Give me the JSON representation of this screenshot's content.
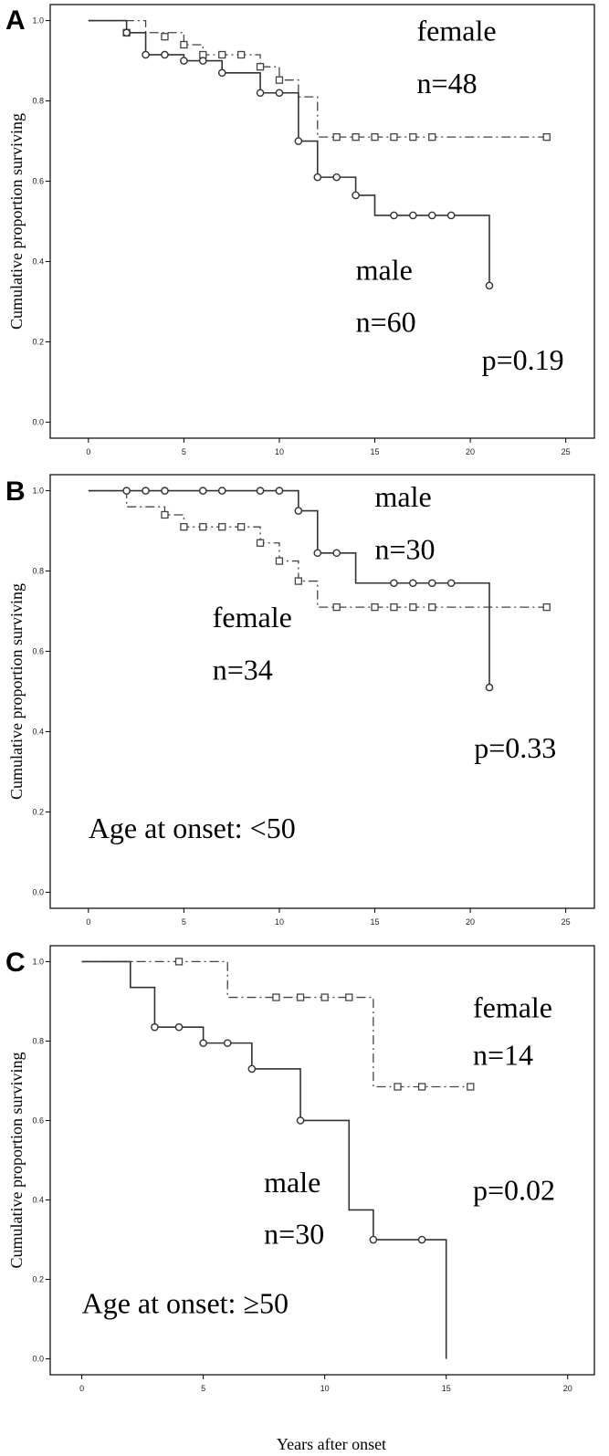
{
  "x_axis_title": "Years after onset",
  "chart_data": [
    {
      "type": "line",
      "panel_letter": "A",
      "title": "",
      "xlabel": "",
      "ylabel": "Cumulative proportion surviving",
      "xlim": [
        -2,
        26.5
      ],
      "ylim": [
        -0.04,
        1.04
      ],
      "x_ticks": [
        "0",
        "5",
        "10",
        "15",
        "20",
        "25"
      ],
      "y_ticks": [
        "0.0",
        "0.2",
        "0.4",
        "0.6",
        "0.8",
        "1.0"
      ],
      "series": [
        {
          "group": "female",
          "style": "dash-dot",
          "color": "#444444",
          "steps": [
            [
              0,
              1.0
            ],
            [
              3,
              0.97
            ],
            [
              5,
              0.94
            ],
            [
              6,
              0.915
            ],
            [
              9,
              0.885
            ],
            [
              10,
              0.852
            ],
            [
              11,
              0.81
            ],
            [
              12,
              0.71
            ],
            [
              24,
              0.71
            ]
          ],
          "censored": [
            [
              2,
              0.97
            ],
            [
              4,
              0.96
            ],
            [
              5,
              0.94
            ],
            [
              6,
              0.915
            ],
            [
              7,
              0.915
            ],
            [
              8,
              0.915
            ],
            [
              9,
              0.885
            ],
            [
              10,
              0.852
            ],
            [
              13,
              0.71
            ],
            [
              14,
              0.71
            ],
            [
              15,
              0.71
            ],
            [
              16,
              0.71
            ],
            [
              17,
              0.71
            ],
            [
              18,
              0.71
            ],
            [
              24,
              0.71
            ]
          ]
        },
        {
          "group": "male",
          "style": "solid",
          "color": "#333333",
          "steps": [
            [
              0,
              1.0
            ],
            [
              2,
              0.97
            ],
            [
              3,
              0.915
            ],
            [
              5,
              0.9
            ],
            [
              7,
              0.87
            ],
            [
              9,
              0.82
            ],
            [
              11,
              0.7
            ],
            [
              12,
              0.61
            ],
            [
              14,
              0.565
            ],
            [
              15,
              0.515
            ],
            [
              21,
              0.34
            ]
          ],
          "censored": [
            [
              2,
              0.97
            ],
            [
              3,
              0.915
            ],
            [
              4,
              0.915
            ],
            [
              5,
              0.9
            ],
            [
              6,
              0.9
            ],
            [
              7,
              0.87
            ],
            [
              9,
              0.82
            ],
            [
              10,
              0.82
            ],
            [
              11,
              0.7
            ],
            [
              12,
              0.61
            ],
            [
              13,
              0.61
            ],
            [
              14,
              0.565
            ],
            [
              16,
              0.515
            ],
            [
              17,
              0.515
            ],
            [
              18,
              0.515
            ],
            [
              19,
              0.515
            ],
            [
              21,
              0.34
            ]
          ]
        }
      ],
      "annotations": [
        {
          "text": "female",
          "x": 17.2,
          "y": 0.95
        },
        {
          "text": "n=48",
          "x": 17.2,
          "y": 0.82
        },
        {
          "text": "male",
          "x": 14.0,
          "y": 0.355
        },
        {
          "text": "n=60",
          "x": 14.0,
          "y": 0.225
        },
        {
          "text": "p=0.19",
          "x": 20.6,
          "y": 0.13
        }
      ]
    },
    {
      "type": "line",
      "panel_letter": "B",
      "title": "",
      "xlabel": "",
      "ylabel": "Cumulative proportion surviving",
      "xlim": [
        -2,
        26.5
      ],
      "ylim": [
        -0.04,
        1.04
      ],
      "x_ticks": [
        "0",
        "5",
        "10",
        "15",
        "20",
        "25"
      ],
      "y_ticks": [
        "0.0",
        "0.2",
        "0.4",
        "0.6",
        "0.8",
        "1.0"
      ],
      "series": [
        {
          "group": "female",
          "style": "dash-dot",
          "color": "#444444",
          "steps": [
            [
              0,
              1.0
            ],
            [
              2,
              0.96
            ],
            [
              4,
              0.94
            ],
            [
              5,
              0.91
            ],
            [
              9,
              0.87
            ],
            [
              10,
              0.825
            ],
            [
              11,
              0.775
            ],
            [
              12,
              0.71
            ],
            [
              24,
              0.71
            ]
          ],
          "censored": [
            [
              4,
              0.94
            ],
            [
              5,
              0.91
            ],
            [
              6,
              0.91
            ],
            [
              7,
              0.91
            ],
            [
              8,
              0.91
            ],
            [
              9,
              0.87
            ],
            [
              10,
              0.825
            ],
            [
              11,
              0.775
            ],
            [
              13,
              0.71
            ],
            [
              15,
              0.71
            ],
            [
              16,
              0.71
            ],
            [
              17,
              0.71
            ],
            [
              18,
              0.71
            ],
            [
              24,
              0.71
            ]
          ]
        },
        {
          "group": "male",
          "style": "solid",
          "color": "#333333",
          "steps": [
            [
              0,
              1.0
            ],
            [
              11,
              0.95
            ],
            [
              12,
              0.845
            ],
            [
              14,
              0.77
            ],
            [
              21,
              0.51
            ]
          ],
          "censored": [
            [
              2,
              1.0
            ],
            [
              3,
              1.0
            ],
            [
              4,
              1.0
            ],
            [
              6,
              1.0
            ],
            [
              7,
              1.0
            ],
            [
              9,
              1.0
            ],
            [
              10,
              1.0
            ],
            [
              11,
              0.95
            ],
            [
              12,
              0.845
            ],
            [
              13,
              0.845
            ],
            [
              16,
              0.77
            ],
            [
              17,
              0.77
            ],
            [
              18,
              0.77
            ],
            [
              19,
              0.77
            ],
            [
              21,
              0.51
            ]
          ]
        }
      ],
      "annotations": [
        {
          "text": "male",
          "x": 15.0,
          "y": 0.96
        },
        {
          "text": "n=30",
          "x": 15.0,
          "y": 0.83
        },
        {
          "text": "female",
          "x": 6.5,
          "y": 0.66
        },
        {
          "text": "n=34",
          "x": 6.5,
          "y": 0.53
        },
        {
          "text": "p=0.33",
          "x": 20.2,
          "y": 0.335
        },
        {
          "text": "Age at onset: <50",
          "x": 0.0,
          "y": 0.135
        }
      ]
    },
    {
      "type": "line",
      "panel_letter": "C",
      "title": "",
      "xlabel": "Years after onset",
      "ylabel": "Cumulative proportion surviving",
      "xlim": [
        -1.3,
        21.1
      ],
      "ylim": [
        -0.04,
        1.04
      ],
      "x_ticks": [
        "0",
        "5",
        "10",
        "15",
        "20"
      ],
      "y_ticks": [
        "0.0",
        "0.2",
        "0.4",
        "0.6",
        "0.8",
        "1.0"
      ],
      "series": [
        {
          "group": "female",
          "style": "dash-dot",
          "color": "#444444",
          "steps": [
            [
              0,
              1.0
            ],
            [
              6,
              0.91
            ],
            [
              12,
              0.685
            ],
            [
              16,
              0.685
            ]
          ],
          "censored": [
            [
              4,
              1.0
            ],
            [
              8,
              0.91
            ],
            [
              9,
              0.91
            ],
            [
              10,
              0.91
            ],
            [
              11,
              0.91
            ],
            [
              13,
              0.685
            ],
            [
              14,
              0.685
            ],
            [
              16,
              0.685
            ]
          ]
        },
        {
          "group": "male",
          "style": "solid",
          "color": "#333333",
          "steps": [
            [
              0,
              1.0
            ],
            [
              2,
              0.935
            ],
            [
              3,
              0.835
            ],
            [
              5,
              0.795
            ],
            [
              7,
              0.73
            ],
            [
              9,
              0.6
            ],
            [
              11,
              0.375
            ],
            [
              12,
              0.3
            ],
            [
              15,
              0.0
            ]
          ],
          "censored": [
            [
              3,
              0.835
            ],
            [
              4,
              0.835
            ],
            [
              5,
              0.795
            ],
            [
              6,
              0.795
            ],
            [
              7,
              0.73
            ],
            [
              9,
              0.6
            ],
            [
              12,
              0.3
            ],
            [
              14,
              0.3
            ]
          ]
        }
      ],
      "annotations": [
        {
          "text": "female",
          "x": 16.1,
          "y": 0.86
        },
        {
          "text": "n=14",
          "x": 16.1,
          "y": 0.74
        },
        {
          "text": "p=0.02",
          "x": 16.1,
          "y": 0.4
        },
        {
          "text": "male",
          "x": 7.5,
          "y": 0.42
        },
        {
          "text": "n=30",
          "x": 7.5,
          "y": 0.29
        },
        {
          "text": "Age at onset: ≥50",
          "x": 0.0,
          "y": 0.115
        }
      ]
    }
  ]
}
